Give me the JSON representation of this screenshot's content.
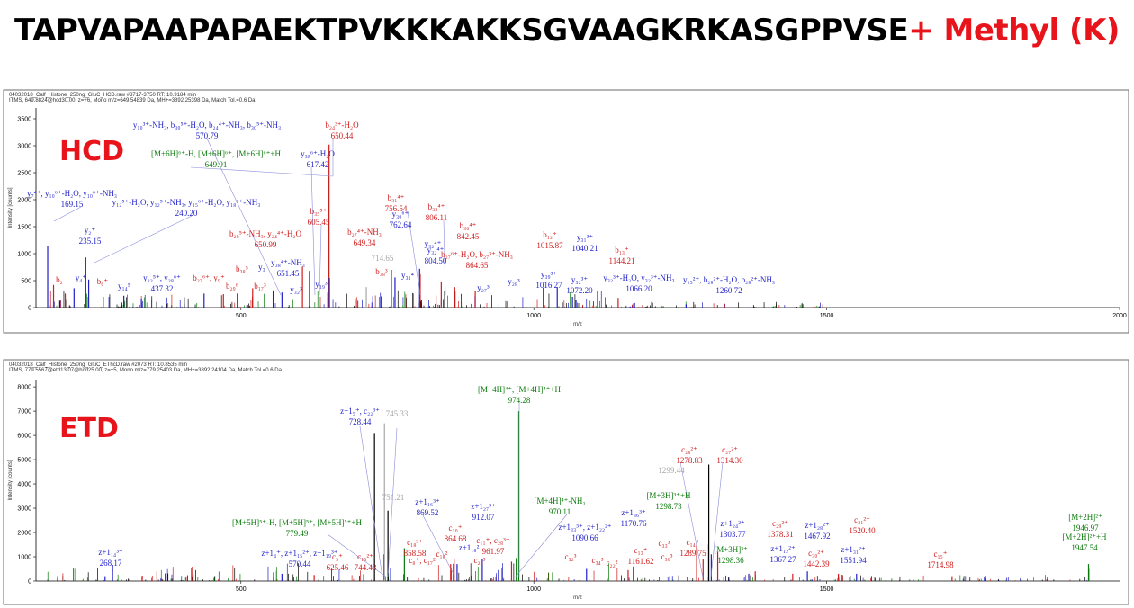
{
  "title": {
    "sequence": "TAPVAPAAPAPAEKTPVKKKAKKSGVAAGKRKASGPPVSE",
    "modification": "+ Methyl (K)"
  },
  "colors": {
    "red": "#d01c1c",
    "blue": "#1f1fc8",
    "green": "#0a7a0a",
    "gray": "#a6a6a6",
    "black": "#000000",
    "title_red": "#e8141b"
  },
  "chart_data": [
    {
      "type": "bar",
      "panel": "HCD",
      "header_line1": "04032018_Calf_Histone_250ng_GluC_HCD.raw  #3717-3750  RT: 10.9184 min",
      "header_line2": "ITMS, 649.8824@hcd30.00, z=+6, Mono m/z=649.54839 Da, MH+=3892.25398 Da, Match Tol.=0.6 Da",
      "ylabel": "Intensity [counts]",
      "xlabel": "m/z",
      "xlim": [
        150,
        2000
      ],
      "ylim": [
        0,
        3700
      ],
      "xticks": [
        500,
        1000,
        1500,
        2000
      ],
      "yticks": [
        0,
        500,
        1000,
        1500,
        2000,
        2500,
        3000,
        3500
      ],
      "peaks": [
        {
          "mz": 170,
          "i": 1150,
          "c": "blue"
        },
        {
          "mz": 235,
          "i": 930,
          "c": "blue"
        },
        {
          "mz": 240,
          "i": 520,
          "c": "blue"
        },
        {
          "mz": 180,
          "i": 420,
          "c": "red"
        },
        {
          "mz": 200,
          "i": 260,
          "c": "red"
        },
        {
          "mz": 215,
          "i": 360,
          "c": "blue"
        },
        {
          "mz": 265,
          "i": 200,
          "c": "red"
        },
        {
          "mz": 300,
          "i": 220,
          "c": "blue"
        },
        {
          "mz": 330,
          "i": 170,
          "c": "blue"
        },
        {
          "mz": 437,
          "i": 260,
          "c": "blue"
        },
        {
          "mz": 470,
          "i": 250,
          "c": "red"
        },
        {
          "mz": 520,
          "i": 360,
          "c": "red"
        },
        {
          "mz": 555,
          "i": 320,
          "c": "blue"
        },
        {
          "mz": 570,
          "i": 280,
          "c": "blue"
        },
        {
          "mz": 605,
          "i": 760,
          "c": "red"
        },
        {
          "mz": 617,
          "i": 680,
          "c": "blue"
        },
        {
          "mz": 649.9,
          "i": 2420,
          "c": "green"
        },
        {
          "mz": 650.4,
          "i": 3020,
          "c": "red"
        },
        {
          "mz": 651,
          "i": 550,
          "c": "blue"
        },
        {
          "mz": 714,
          "i": 380,
          "c": "gray"
        },
        {
          "mz": 757,
          "i": 700,
          "c": "red"
        },
        {
          "mz": 763,
          "i": 560,
          "c": "blue"
        },
        {
          "mz": 805,
          "i": 720,
          "c": "blue"
        },
        {
          "mz": 806,
          "i": 620,
          "c": "red"
        },
        {
          "mz": 842,
          "i": 480,
          "c": "red"
        },
        {
          "mz": 865,
          "i": 380,
          "c": "red"
        },
        {
          "mz": 900,
          "i": 300,
          "c": "red"
        },
        {
          "mz": 1016,
          "i": 370,
          "c": "red"
        },
        {
          "mz": 1040,
          "i": 380,
          "c": "blue"
        },
        {
          "mz": 1066,
          "i": 200,
          "c": "blue"
        },
        {
          "mz": 1072,
          "i": 150,
          "c": "blue"
        },
        {
          "mz": 1144,
          "i": 180,
          "c": "red"
        },
        {
          "mz": 1260,
          "i": 60,
          "c": "blue"
        }
      ],
      "labels": [
        {
          "text": "y₁₀³⁺-NH₃, b₃₀⁵⁺-H₂O, b₂₄⁴⁺-NH₃, b₃₀⁵⁺-NH₃",
          "value": "570.79",
          "c": "blue"
        },
        {
          "text": "b₂₄³⁺-H₂O",
          "value": "650.44",
          "c": "red"
        },
        {
          "text": "[M+6H]⁶⁺-H, [M+6H]⁶⁺, [M+6H]⁶⁺+H",
          "value": "649.91",
          "c": "green"
        },
        {
          "text": "y₃₈⁶⁺-H₂O",
          "value": "617.42",
          "c": "blue"
        },
        {
          "text": "y₇⁴⁺, y₁₀⁶⁺-H₂O, y₁₀⁶⁺-NH₃",
          "value": "169.15",
          "c": "blue"
        },
        {
          "text": "y₁₂⁵⁺-H₂O, y₁₂⁵⁺-NH₃, y₁₅⁶⁺-H₂O, y₁₈⁶⁺-NH₃",
          "value": "240.20",
          "c": "blue"
        },
        {
          "text": "b₃₅⁵⁺",
          "value": "605.45",
          "c": "red"
        },
        {
          "text": "b₃₁⁴⁺",
          "value": "756.54",
          "c": "red"
        },
        {
          "text": "b₃₃⁴⁺",
          "value": "806.11",
          "c": "red"
        },
        {
          "text": "y₃₀⁶⁺",
          "value": "762.64",
          "c": "blue"
        },
        {
          "text": "b₃₆⁴⁺",
          "value": "842.45",
          "c": "red"
        },
        {
          "text": "y₂⁺",
          "value": "235.15",
          "c": "blue"
        },
        {
          "text": "b₂₀⁵⁺-NH₃, y₂₄⁴⁺-H₂O",
          "value": "650.99",
          "c": "red"
        },
        {
          "text": "b₂₇⁴⁺-NH₃",
          "value": "649.34",
          "c": "red"
        },
        {
          "text": "",
          "value": "714.65",
          "c": "gray"
        },
        {
          "text": "y₃₂⁴⁺",
          "value": "804.50",
          "c": "blue"
        },
        {
          "text": "b₁₂⁺",
          "value": "1015.87",
          "c": "red"
        },
        {
          "text": "y₃₁³⁺",
          "value": "1040.21",
          "c": "blue"
        },
        {
          "text": "b₁₃⁺",
          "value": "1144.21",
          "c": "red"
        },
        {
          "text": "b₂₇⁶⁺-H₂O, b₂₇³⁺-NH₃",
          "value": "864.65",
          "c": "red"
        },
        {
          "text": "y₃₉³⁺",
          "value": "1016.27",
          "c": "blue"
        },
        {
          "text": "y₃₂³⁺",
          "value": "1072.20",
          "c": "blue"
        },
        {
          "text": "y₃₂³⁺-H₂O, y₃₂³⁺-NH₃",
          "value": "1066.20",
          "c": "blue"
        },
        {
          "text": "y₂₅²⁺, b₂₈²⁺-H₂O, b₂₈²⁺-NH₃",
          "value": "1260.72",
          "c": "blue"
        },
        {
          "text": "y₂₂⁵⁺, y₂₈⁶⁺",
          "value": "437.32",
          "c": "blue"
        },
        {
          "text": "y₃₈⁴⁺-NH₃",
          "value": "651.45",
          "c": "blue"
        },
        {
          "text": "b₂",
          "value": "",
          "c": "red"
        },
        {
          "text": "y₄⁺",
          "value": "",
          "c": "blue"
        },
        {
          "text": "b₆⁺",
          "value": "",
          "c": "red"
        },
        {
          "text": "y₁₄⁵",
          "value": "",
          "c": "blue"
        },
        {
          "text": "b₂₇⁶⁺, y₉⁺",
          "value": "",
          "c": "red"
        },
        {
          "text": "b₂₉⁶",
          "value": "",
          "c": "red"
        },
        {
          "text": "b₃₈⁵",
          "value": "",
          "c": "red"
        },
        {
          "text": "b₁₇³",
          "value": "",
          "c": "red"
        },
        {
          "text": "y₃",
          "value": "",
          "c": "blue"
        },
        {
          "text": "y₃₂³",
          "value": "",
          "c": "blue"
        },
        {
          "text": "y₁₉³",
          "value": "",
          "c": "blue"
        },
        {
          "text": "b₃₈³",
          "value": "",
          "c": "red"
        },
        {
          "text": "y₃₁⁴",
          "value": "",
          "c": "blue"
        },
        {
          "text": "y₃₂⁴⁺",
          "value": "",
          "c": "blue"
        },
        {
          "text": "y₂₇³",
          "value": "",
          "c": "blue"
        },
        {
          "text": "y₂₈³",
          "value": "",
          "c": "blue"
        }
      ],
      "panel_label": "HCD"
    },
    {
      "type": "bar",
      "panel": "ETD",
      "header_line1": "04032018_Calf_Histone_250ng_GluC_EThcD.raw  #2073  RT: 10.8535 min",
      "header_line2": "ITMS, 779.5567@etd13.07@hcd25.00, z=+5, Mono m/z=779.25403 Da, MH+=3892.24104 Da, Match Tol.=0.6 Da",
      "ylabel": "Intensity [counts]",
      "xlabel": "m/z",
      "xlim": [
        150,
        2000
      ],
      "ylim": [
        0,
        8300
      ],
      "xticks": [
        500,
        1000,
        1500
      ],
      "yticks": [
        0,
        1000,
        2000,
        3000,
        4000,
        5000,
        6000,
        7000,
        8000
      ],
      "peaks": [
        {
          "mz": 268,
          "i": 200,
          "c": "blue"
        },
        {
          "mz": 570,
          "i": 300,
          "c": "blue"
        },
        {
          "mz": 625,
          "i": 250,
          "c": "red"
        },
        {
          "mz": 728,
          "i": 6100,
          "c": "black"
        },
        {
          "mz": 744,
          "i": 1100,
          "c": "red"
        },
        {
          "mz": 745,
          "i": 6500,
          "c": "gray"
        },
        {
          "mz": 751,
          "i": 2900,
          "c": "black"
        },
        {
          "mz": 779,
          "i": 1350,
          "c": "green"
        },
        {
          "mz": 858,
          "i": 700,
          "c": "red"
        },
        {
          "mz": 864,
          "i": 900,
          "c": "red"
        },
        {
          "mz": 869,
          "i": 700,
          "c": "blue"
        },
        {
          "mz": 912,
          "i": 900,
          "c": "blue"
        },
        {
          "mz": 962,
          "i": 800,
          "c": "red"
        },
        {
          "mz": 970,
          "i": 950,
          "c": "green"
        },
        {
          "mz": 974.3,
          "i": 7000,
          "c": "green"
        },
        {
          "mz": 1090,
          "i": 500,
          "c": "blue"
        },
        {
          "mz": 1161,
          "i": 450,
          "c": "red"
        },
        {
          "mz": 1170,
          "i": 600,
          "c": "blue"
        },
        {
          "mz": 1278,
          "i": 1500,
          "c": "red"
        },
        {
          "mz": 1289,
          "i": 900,
          "c": "red"
        },
        {
          "mz": 1298.4,
          "i": 1500,
          "c": "green"
        },
        {
          "mz": 1298.7,
          "i": 4800,
          "c": "black"
        },
        {
          "mz": 1303,
          "i": 1100,
          "c": "blue"
        },
        {
          "mz": 1314,
          "i": 1200,
          "c": "red"
        },
        {
          "mz": 1367,
          "i": 300,
          "c": "blue"
        },
        {
          "mz": 1378,
          "i": 400,
          "c": "red"
        },
        {
          "mz": 1442,
          "i": 300,
          "c": "red"
        },
        {
          "mz": 1467,
          "i": 400,
          "c": "blue"
        },
        {
          "mz": 1520,
          "i": 300,
          "c": "red"
        },
        {
          "mz": 1551,
          "i": 300,
          "c": "blue"
        },
        {
          "mz": 1714,
          "i": 200,
          "c": "red"
        },
        {
          "mz": 1946.97,
          "i": 700,
          "c": "green"
        },
        {
          "mz": 1947.5,
          "i": 500,
          "c": "green"
        }
      ],
      "labels": [
        {
          "text": "z+1₅⁺, c₂₂³⁺",
          "value": "728.44",
          "c": "blue"
        },
        {
          "text": "",
          "value": "745.33",
          "c": "gray"
        },
        {
          "text": "[M+4H]⁴⁺, [M+4H]⁴⁺+H",
          "value": "974.28",
          "c": "green"
        },
        {
          "text": "c₂₈²⁺",
          "value": "1278.83",
          "c": "red"
        },
        {
          "text": "c₂₇²⁺",
          "value": "1314.30",
          "c": "red"
        },
        {
          "text": "",
          "value": "1299.44",
          "c": "gray"
        },
        {
          "text": "",
          "value": "751.21",
          "c": "gray"
        },
        {
          "text": "z+1₁₆³⁺",
          "value": "869.52",
          "c": "blue"
        },
        {
          "text": "[M+4H]⁴⁺-NH₃",
          "value": "970.11",
          "c": "green"
        },
        {
          "text": "z+1₂₇³⁺",
          "value": "912.07",
          "c": "blue"
        },
        {
          "text": "[M+3H]³⁺+H",
          "value": "1298.73",
          "c": "green"
        },
        {
          "text": "z+1₃₆³⁺",
          "value": "1170.76",
          "c": "blue"
        },
        {
          "text": "z+1₂₄²⁺",
          "value": "1303.77",
          "c": "blue"
        },
        {
          "text": "[M+2H]²⁺",
          "value": "1946.97",
          "c": "green"
        },
        {
          "text": "[M+5H]⁵⁺-H, [M+5H]⁵⁺, [M+5H]⁵⁺+H",
          "value": "779.49",
          "c": "green"
        },
        {
          "text": "z+1₃₃³⁺, z+1₂₂²⁺",
          "value": "1090.66",
          "c": "blue"
        },
        {
          "text": "c₂₉²⁺",
          "value": "1378.31",
          "c": "red"
        },
        {
          "text": "z+1₂₈²⁺",
          "value": "1467.92",
          "c": "blue"
        },
        {
          "text": "c₃₁²⁺",
          "value": "1520.40",
          "c": "red"
        },
        {
          "text": "[M+2H]²⁺+H",
          "value": "1947.54",
          "c": "green"
        },
        {
          "text": "c₁₈³⁺",
          "value": "858.58",
          "c": "red"
        },
        {
          "text": "c₁₀⁺",
          "value": "864.68",
          "c": "red"
        },
        {
          "text": "c₁₁⁺, c₂₈³⁺",
          "value": "961.97",
          "c": "red"
        },
        {
          "text": "[M+3H]³⁺",
          "value": "1298.36",
          "c": "green"
        },
        {
          "text": "c₁₄⁺",
          "value": "1289.75",
          "c": "red"
        },
        {
          "text": "z+1₁₂²⁺",
          "value": "1367.27",
          "c": "blue"
        },
        {
          "text": "c₃₀²⁺",
          "value": "1442.39",
          "c": "red"
        },
        {
          "text": "z+1₃₁²⁺",
          "value": "1551.94",
          "c": "blue"
        },
        {
          "text": "c₁₃⁺",
          "value": "1161.62",
          "c": "red"
        },
        {
          "text": "z+1₁₄³⁺",
          "value": "268.17",
          "c": "blue"
        },
        {
          "text": "z+1₄⁺, z+1₁₅²⁺, z+1₁₉³⁺",
          "value": "570.44",
          "c": "blue"
        },
        {
          "text": "c₅⁺",
          "value": "625.46",
          "c": "red"
        },
        {
          "text": "c₁₆²⁺",
          "value": "744.43",
          "c": "red"
        },
        {
          "text": "c₁₅⁺",
          "value": "1714.98",
          "c": "red"
        },
        {
          "text": "c₈⁺, c₁₇²",
          "value": "",
          "c": "red"
        },
        {
          "text": "c₁₈²",
          "value": "",
          "c": "red"
        },
        {
          "text": "z+1₁₈²",
          "value": "",
          "c": "blue"
        },
        {
          "text": "c₂₉³",
          "value": "",
          "c": "red"
        },
        {
          "text": "c₃₂³",
          "value": "",
          "c": "red"
        },
        {
          "text": "c₃₄³",
          "value": "",
          "c": "red"
        },
        {
          "text": "c₂₂²",
          "value": "",
          "c": "red"
        },
        {
          "text": "c₃₃³",
          "value": "",
          "c": "red"
        },
        {
          "text": "c₃₆³",
          "value": "",
          "c": "red"
        }
      ],
      "panel_label": "ETD"
    }
  ]
}
